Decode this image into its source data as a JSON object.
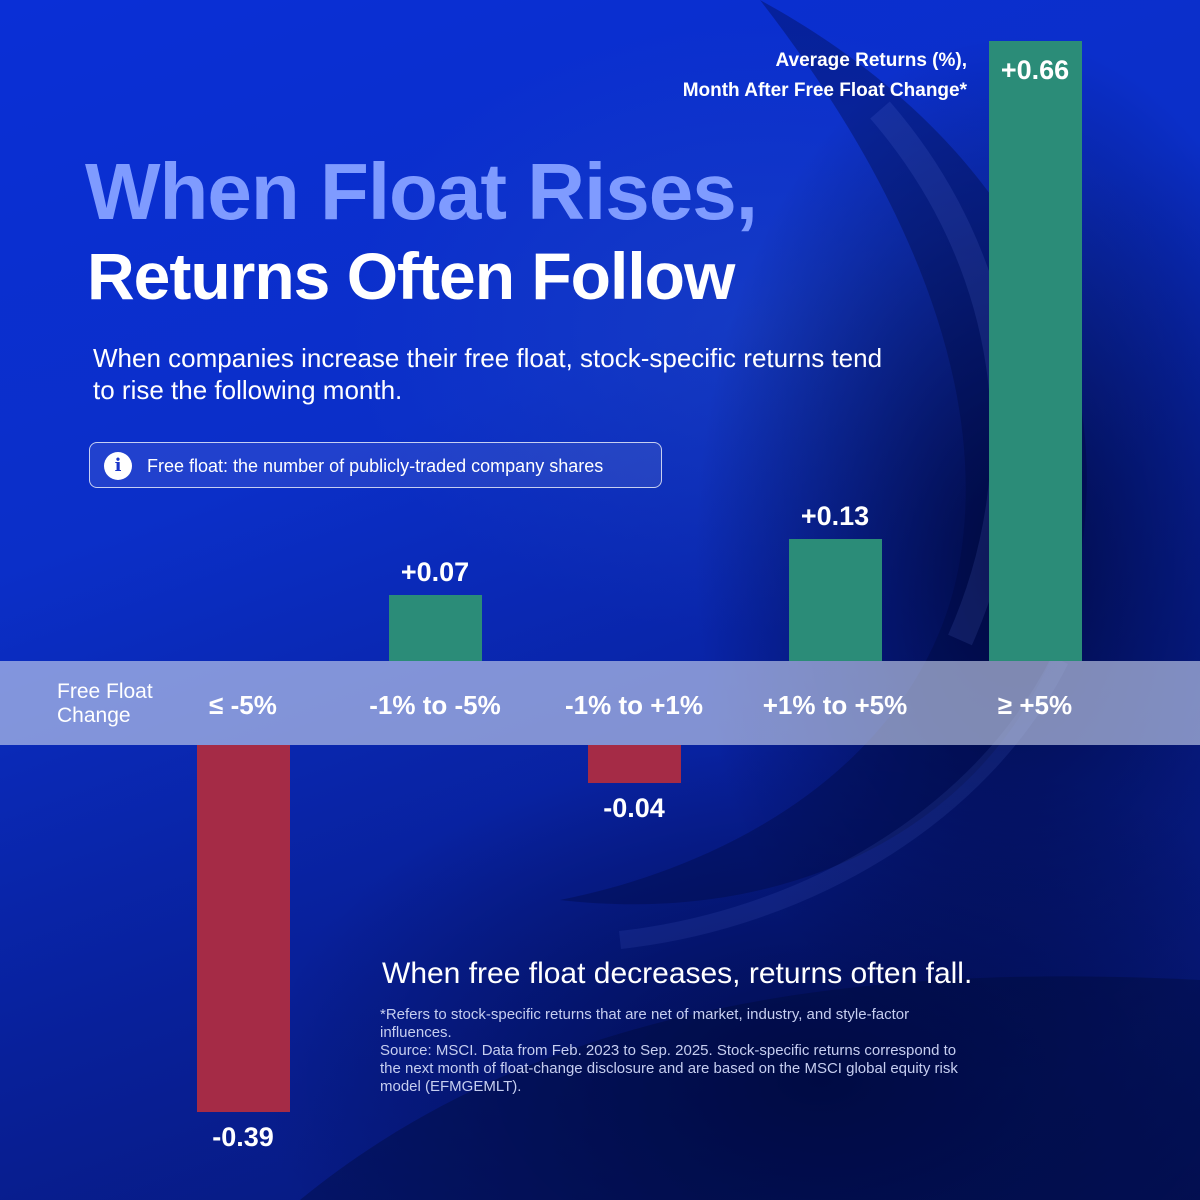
{
  "title_line1": "When Float Rises,",
  "title_line2": "Returns Often Follow",
  "subtitle": "When companies increase their free float, stock-specific returns tend to rise the following month.",
  "info": {
    "text": "Free float: the number of publicly-traded company shares",
    "icon": "info-icon"
  },
  "legend_label": {
    "line1": "Average Returns (%),",
    "line2": "Month After Free Float Change*"
  },
  "insight": "When free float decreases, returns often fall.",
  "footnote": {
    "line1": "*Refers to stock-specific returns that are net of market, industry, and style-factor influences.",
    "line2": "Source: MSCI. Data from Feb. 2023 to Sep. 2025. Stock-specific returns correspond to the next month of float-change disclosure and are based on the MSCI global equity risk model (EFMGEMLT)."
  },
  "colors": {
    "positive": "#2b8c78",
    "negative": "#a52b46",
    "band": "#cdd7f0"
  },
  "chart_data": {
    "type": "bar",
    "xlabel": "Free Float Change",
    "ylabel": "Average Returns (%), Month After Free Float Change*",
    "categories": [
      "≤ -5%",
      "-1% to -5%",
      "-1% to +1%",
      "+1% to +5%",
      "≥ +5%"
    ],
    "values": [
      -0.39,
      0.07,
      -0.04,
      0.13,
      0.66
    ],
    "value_labels": [
      "-0.39",
      "+0.07",
      "-0.04",
      "+0.13",
      "+0.66"
    ],
    "ylim": [
      -0.39,
      0.66
    ],
    "grid": false
  }
}
